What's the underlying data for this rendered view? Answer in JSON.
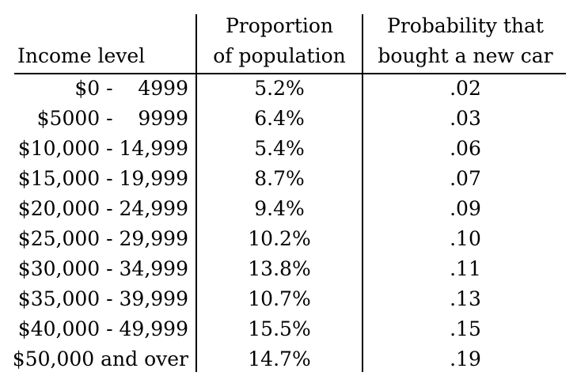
{
  "table": {
    "headers": {
      "income": "Income level",
      "proportion_line1": "Proportion",
      "proportion_line2": "of population",
      "probability_line1": "Probability that",
      "probability_line2": "bought a new car"
    },
    "rows": [
      {
        "income": "$0 -    4999",
        "proportion": "5.2%",
        "probability": ".02"
      },
      {
        "income": "$5000 -    9999",
        "proportion": "6.4%",
        "probability": ".03"
      },
      {
        "income": "$10,000 - 14,999",
        "proportion": "5.4%",
        "probability": ".06"
      },
      {
        "income": "$15,000 - 19,999",
        "proportion": "8.7%",
        "probability": ".07"
      },
      {
        "income": "$20,000 - 24,999",
        "proportion": "9.4%",
        "probability": ".09"
      },
      {
        "income": "$25,000 - 29,999",
        "proportion": "10.2%",
        "probability": ".10"
      },
      {
        "income": "$30,000 - 34,999",
        "proportion": "13.8%",
        "probability": ".11"
      },
      {
        "income": "$35,000 - 39,999",
        "proportion": "10.7%",
        "probability": ".13"
      },
      {
        "income": "$40,000 - 49,999",
        "proportion": "15.5%",
        "probability": ".15"
      },
      {
        "income": "$50,000 and over",
        "proportion": "14.7%",
        "probability": ".19"
      }
    ]
  }
}
